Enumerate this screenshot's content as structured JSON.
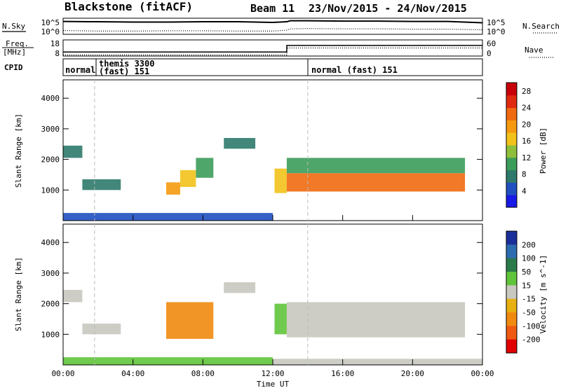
{
  "header": {
    "station": "Blackstone (fitACF)",
    "beam": "Beam 11",
    "dates": "23/Nov/2015 - 24/Nov/2015"
  },
  "noise_panel": {
    "left_label": "N.Sky",
    "right_label": "N.Search",
    "left_ticks": [
      "10^5",
      "10^0"
    ],
    "right_ticks": [
      "10^5",
      "10^0"
    ]
  },
  "freq_panel": {
    "left_label_line1": "Freq.",
    "left_label_line2": "[MHz]",
    "right_label": "Nave",
    "left_ticks": [
      "18",
      "8"
    ],
    "right_ticks": [
      "60",
      "0"
    ]
  },
  "cpid_panel": {
    "label": "CPID",
    "modes": [
      {
        "text_line1": "normal",
        "text_line2": "",
        "start_hour": 0
      },
      {
        "text_line1": "themis 3300",
        "text_line2": "(fast) 151",
        "start_hour": 1.8
      },
      {
        "text_line1": "normal (fast) 151",
        "text_line2": "",
        "start_hour": 14
      }
    ]
  },
  "x_axis": {
    "label": "Time UT",
    "ticks": [
      "00:00",
      "04:00",
      "08:00",
      "12:00",
      "16:00",
      "20:00",
      "00:00"
    ]
  },
  "power_panel": {
    "ylabel": "Slant Range [km]",
    "yticks": [
      "1000",
      "2000",
      "3000",
      "4000"
    ],
    "colorbar_label": "Power [dB]",
    "colorbar_ticks": [
      "4",
      "8",
      "12",
      "16",
      "20",
      "24",
      "28"
    ],
    "colors": [
      "#1a1ae6",
      "#2050c0",
      "#2e7a6a",
      "#3c9c5a",
      "#8fbf3a",
      "#f2c21a",
      "#f59a10",
      "#f06a10",
      "#e02a10",
      "#c8000a"
    ]
  },
  "velocity_panel": {
    "ylabel": "Slant Range [km]",
    "yticks": [
      "1000",
      "2000",
      "3000",
      "4000"
    ],
    "colorbar_label": "Velocity [m s^-1]",
    "colorbar_ticks": [
      "200",
      "100",
      "50",
      "15",
      "-15",
      "-50",
      "-100",
      "-200"
    ],
    "colors": [
      "#1b2f9a",
      "#2e6cb0",
      "#2a7a4a",
      "#5fc43a",
      "#c8c8c0",
      "#e8b010",
      "#f08a10",
      "#f05a10",
      "#e00000"
    ]
  },
  "chart_data": [
    {
      "type": "line",
      "title": "N.Sky / N.Search",
      "x": [
        0,
        2,
        4,
        6,
        8,
        10,
        12,
        12.8,
        13,
        14,
        16,
        18,
        20,
        22,
        24
      ],
      "series": [
        {
          "name": "N.Sky",
          "values": [
            4.0,
            3.9,
            3.8,
            3.8,
            3.9,
            3.9,
            3.7,
            3.9,
            4.2,
            4.2,
            4.1,
            4.1,
            4.0,
            4.0,
            3.6
          ]
        },
        {
          "name": "N.Search",
          "values": [
            1.2,
            1.0,
            1.0,
            1.1,
            1.1,
            1.0,
            1.0,
            1.3,
            1.7,
            1.8,
            1.7,
            1.7,
            1.6,
            1.6,
            1.4
          ]
        }
      ],
      "ylim": [
        0,
        5
      ]
    },
    {
      "type": "line",
      "title": "Freq. / Nave",
      "x": [
        0,
        12.8,
        12.8,
        24
      ],
      "series": [
        {
          "name": "Freq.",
          "values": [
            10.5,
            10.5,
            14.6,
            14.6
          ]
        },
        {
          "name": "Nave",
          "values": [
            4,
            4,
            30,
            30
          ]
        }
      ]
    },
    {
      "type": "heatmap",
      "title": "Power [dB]",
      "xlabel": "Time UT",
      "ylabel": "Slant Range [km]",
      "xlim": [
        0,
        24
      ],
      "ylim": [
        0,
        4600
      ],
      "zlim": [
        0,
        30
      ],
      "patches": [
        {
          "t0": 0.0,
          "t1": 1.1,
          "r0": 2050,
          "r1": 2450,
          "value": 8
        },
        {
          "t0": 1.1,
          "t1": 3.3,
          "r0": 1000,
          "r1": 1350,
          "value": 7
        },
        {
          "t0": 5.9,
          "t1": 6.7,
          "r0": 850,
          "r1": 1250,
          "value": 20
        },
        {
          "t0": 6.7,
          "t1": 7.6,
          "r0": 1100,
          "r1": 1650,
          "value": 17
        },
        {
          "t0": 7.6,
          "t1": 8.6,
          "r0": 1400,
          "r1": 2050,
          "value": 11
        },
        {
          "t0": 9.2,
          "t1": 11.0,
          "r0": 2350,
          "r1": 2700,
          "value": 7
        },
        {
          "t0": 12.1,
          "t1": 12.8,
          "r0": 900,
          "r1": 1700,
          "value": 17
        },
        {
          "t0": 12.8,
          "t1": 23.0,
          "r0": 950,
          "r1": 1550,
          "value": 22
        },
        {
          "t0": 12.8,
          "t1": 23.0,
          "r0": 1550,
          "r1": 2050,
          "value": 10
        },
        {
          "t0": 0.0,
          "t1": 12.0,
          "r0": 0,
          "r1": 250,
          "value": 5
        }
      ]
    },
    {
      "type": "heatmap",
      "title": "Velocity [m s^-1]",
      "xlabel": "Time UT",
      "ylabel": "Slant Range [km]",
      "xlim": [
        0,
        24
      ],
      "ylim": [
        0,
        4600
      ],
      "zlim": [
        -200,
        200
      ],
      "patches": [
        {
          "t0": 0.0,
          "t1": 1.1,
          "r0": 2050,
          "r1": 2450,
          "value": 0
        },
        {
          "t0": 1.1,
          "t1": 3.3,
          "r0": 1000,
          "r1": 1350,
          "value": 5
        },
        {
          "t0": 5.9,
          "t1": 8.6,
          "r0": 850,
          "r1": 2050,
          "value": -60
        },
        {
          "t0": 9.2,
          "t1": 11.0,
          "r0": 2350,
          "r1": 2700,
          "value": 0
        },
        {
          "t0": 12.1,
          "t1": 12.8,
          "r0": 1000,
          "r1": 2000,
          "value": 40
        },
        {
          "t0": 12.8,
          "t1": 23.0,
          "r0": 900,
          "r1": 2050,
          "value": 0
        },
        {
          "t0": 0.0,
          "t1": 12.0,
          "r0": 0,
          "r1": 250,
          "value": 30
        },
        {
          "t0": 12.0,
          "t1": 24.0,
          "r0": 0,
          "r1": 200,
          "value": 0
        }
      ]
    }
  ]
}
